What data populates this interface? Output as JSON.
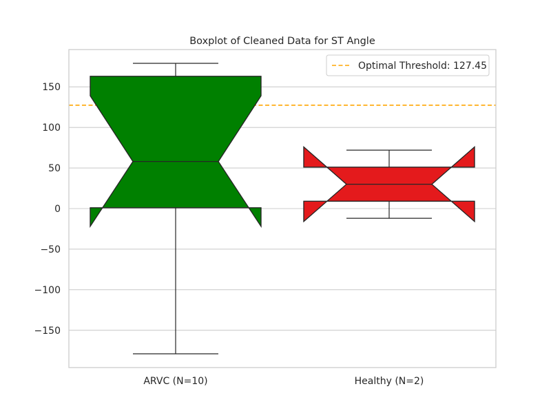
{
  "chart_data": {
    "type": "boxplot",
    "title": "Boxplot of Cleaned Data for ST Angle",
    "xlabel": "",
    "ylabel": "",
    "ylim": [
      -196,
      196
    ],
    "yticks": [
      -150,
      -100,
      -50,
      0,
      50,
      100,
      150
    ],
    "ytick_labels": [
      "−150",
      "−100",
      "−50",
      "0",
      "50",
      "100",
      "150"
    ],
    "grid": true,
    "notched": true,
    "categories": [
      "ARVC (N=10)",
      "Healthy (N=2)"
    ],
    "boxes": [
      {
        "label": "ARVC (N=10)",
        "color": "#008000",
        "whisker_low": -179,
        "q1": 1,
        "median": 58,
        "q3": 163,
        "whisker_high": 179,
        "notch_low": -22,
        "notch_high": 139
      },
      {
        "label": "Healthy (N=2)",
        "color": "#e41a1c",
        "whisker_low": -12,
        "q1": 9,
        "median": 30,
        "q3": 51,
        "whisker_high": 72,
        "notch_low": -16,
        "notch_high": 76
      }
    ],
    "threshold": {
      "value": 127.45,
      "label": "Optimal Threshold: 127.45",
      "color": "#ffa500",
      "style": "dashed"
    },
    "legend_position": "top-right"
  }
}
